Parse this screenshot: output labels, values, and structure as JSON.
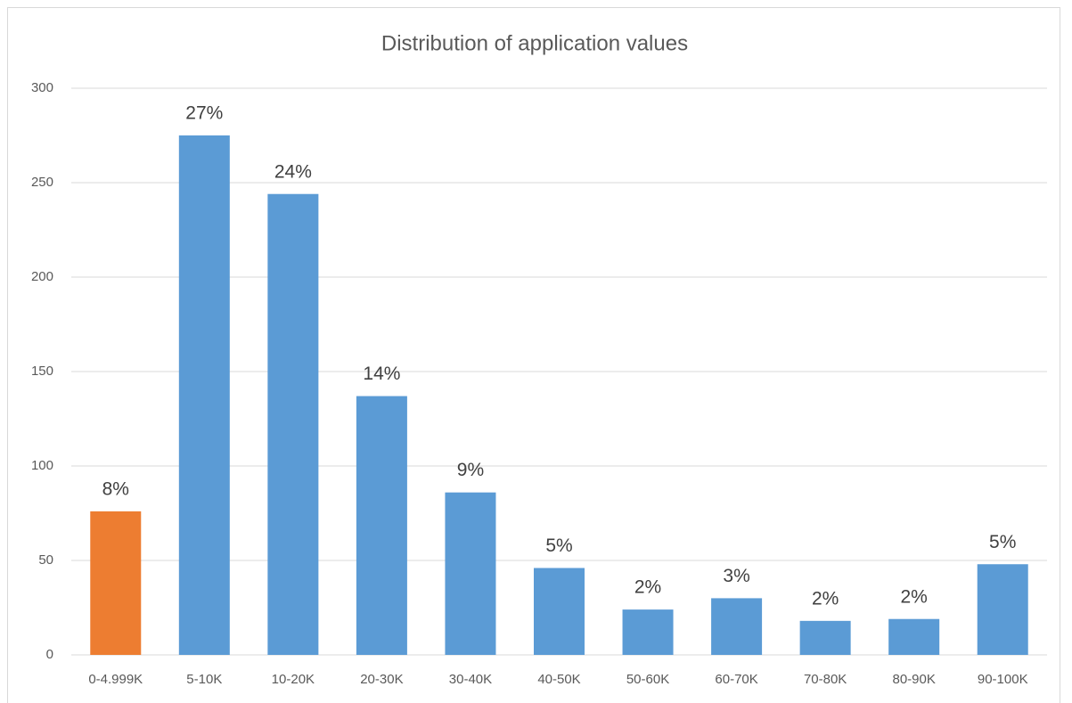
{
  "chart_data": {
    "type": "bar",
    "title": "Distribution of application values",
    "categories": [
      "0-4.999K",
      "5-10K",
      "10-20K",
      "20-30K",
      "30-40K",
      "40-50K",
      "50-60K",
      "60-70K",
      "70-80K",
      "80-90K",
      "90-100K"
    ],
    "values": [
      76,
      275,
      244,
      137,
      86,
      46,
      24,
      30,
      18,
      19,
      48
    ],
    "percent_labels": [
      "8%",
      "27%",
      "24%",
      "14%",
      "9%",
      "5%",
      "2%",
      "3%",
      "2%",
      "2%",
      "5%"
    ],
    "colors": [
      "#ed7d31",
      "#5b9bd5",
      "#5b9bd5",
      "#5b9bd5",
      "#5b9bd5",
      "#5b9bd5",
      "#5b9bd5",
      "#5b9bd5",
      "#5b9bd5",
      "#5b9bd5",
      "#5b9bd5"
    ],
    "ylim": [
      0,
      300
    ],
    "yticks": [
      0,
      50,
      100,
      150,
      200,
      250,
      300
    ],
    "grid": true
  }
}
